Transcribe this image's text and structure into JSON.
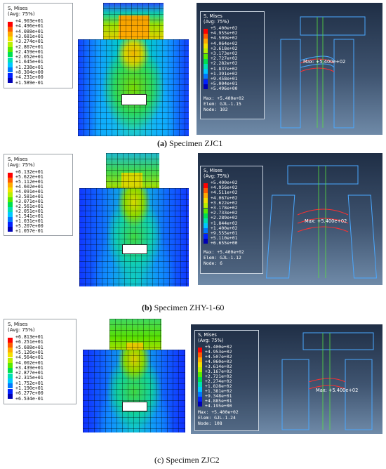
{
  "colors": [
    "#ff0000",
    "#ff5a00",
    "#ffaa00",
    "#f4e000",
    "#b8f000",
    "#58ea00",
    "#00e050",
    "#00e0b0",
    "#00c8ff",
    "#0078ff",
    "#0020ff",
    "#0000b4"
  ],
  "panels": [
    {
      "left_legend": {
        "title": "S, Mises",
        "avg": "(Avg: 75%)",
        "values": [
          "+4.903e+01",
          "+4.496e+01",
          "+4.088e+01",
          "+3.681e+01",
          "+3.274e+01",
          "+2.867e+01",
          "+2.459e+01",
          "+2.052e+01",
          "+1.645e+01",
          "+1.238e+01",
          "+8.304e+00",
          "+4.231e+00",
          "+1.589e-01"
        ]
      },
      "right_legend": {
        "title": "S, Mises",
        "avg": "(Avg: 75%)",
        "values": [
          "+5.400e+02",
          "+4.955e+02",
          "+4.509e+02",
          "+4.064e+02",
          "+3.618e+02",
          "+3.173e+02",
          "+2.727e+02",
          "+2.282e+02",
          "+1.837e+02",
          "+1.391e+02",
          "+9.458e+01",
          "+5.004e+01",
          "+5.496e+00"
        ],
        "max": "Max: +5.400e+02",
        "elem": "Elem: GJL-1.15",
        "node": "Node: 102"
      },
      "max_label": "Max: +5.400e+02",
      "caption_letter": "(a)",
      "caption_text": " Specimen ZJC1"
    },
    {
      "left_legend": {
        "title": "S, Mises",
        "avg": "(Avg: 75%)",
        "values": [
          "+6.132e+01",
          "+5.622e+01",
          "+5.112e+01",
          "+4.602e+01",
          "+4.091e+01",
          "+3.581e+01",
          "+3.071e+01",
          "+2.561e+01",
          "+2.051e+01",
          "+1.541e+01",
          "+1.031e+01",
          "+5.207e+00",
          "+1.057e-01"
        ]
      },
      "right_legend": {
        "title": "S, Mises",
        "avg": "(Avg: 75%)",
        "values": [
          "+5.400e+02",
          "+4.956e+02",
          "+4.511e+02",
          "+4.067e+02",
          "+3.622e+02",
          "+3.178e+02",
          "+2.733e+02",
          "+2.289e+02",
          "+1.844e+02",
          "+1.400e+02",
          "+9.555e+01",
          "+5.110e+01",
          "+6.655e+00"
        ],
        "max": "Max: +5.400e+02",
        "elem": "Elem: GJL-1.12",
        "node": "Node: 6"
      },
      "max_label": "Max: +5.400e+02",
      "caption_letter": "(b)",
      "caption_text": " Specimen ZHY-1-60"
    },
    {
      "left_legend": {
        "title": "S, Mises",
        "avg": "(Avg: 75%)",
        "values": [
          "+6.813e+01",
          "+6.251e+01",
          "+5.688e+01",
          "+5.126e+01",
          "+4.564e+01",
          "+4.002e+01",
          "+3.439e+01",
          "+2.877e+01",
          "+2.315e+01",
          "+1.752e+01",
          "+1.190e+01",
          "+6.277e+00",
          "+6.534e-01"
        ]
      },
      "right_legend": {
        "title": "S, Mises",
        "avg": "(Avg: 75%)",
        "values": [
          "+5.400e+02",
          "+4.953e+02",
          "+4.507e+02",
          "+4.060e+02",
          "+3.614e+02",
          "+3.167e+02",
          "+2.721e+02",
          "+2.274e+02",
          "+1.828e+02",
          "+1.381e+02",
          "+9.348e+01",
          "+4.885e+01",
          "+4.195e+00"
        ],
        "max": "Max: +5.400e+02",
        "elem": "Elem: GJL-1.24",
        "node": "Node: 108"
      },
      "max_label": "Max: +5.400e+02",
      "caption_letter": "(c)",
      "caption_text": " Specimen ZJC2"
    }
  ]
}
